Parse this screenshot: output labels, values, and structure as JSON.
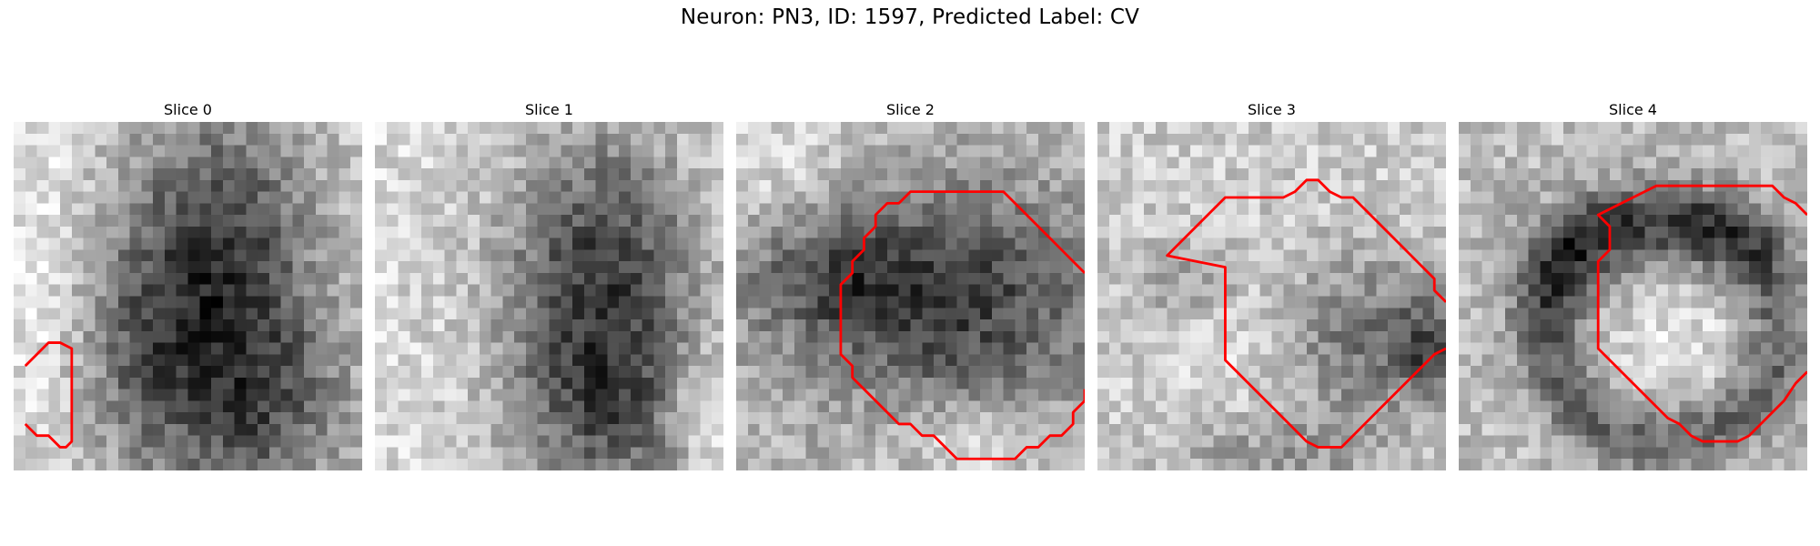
{
  "figure": {
    "title": "Neuron: PN3, ID: 1597, Predicted Label: CV",
    "colors": {
      "contour": "#ff0000",
      "background": "#ffffff",
      "colormap": "gray"
    }
  },
  "panels": [
    {
      "title": "Slice 0",
      "contour": [
        [
          0.5,
          20.5
        ],
        [
          1.5,
          19.5
        ],
        [
          2.5,
          18.5
        ],
        [
          3.5,
          18.5
        ],
        [
          4.5,
          19.0
        ],
        [
          4.5,
          21.0
        ],
        [
          4.5,
          23.0
        ],
        [
          4.5,
          25.0
        ],
        [
          4.5,
          27.0
        ],
        [
          4.0,
          27.5
        ],
        [
          3.5,
          27.5
        ],
        [
          2.5,
          26.5
        ],
        [
          1.5,
          26.5
        ],
        [
          0.5,
          25.5
        ]
      ]
    },
    {
      "title": "Slice 1",
      "contour": []
    },
    {
      "title": "Slice 2",
      "contour": [
        [
          29.5,
          12.5
        ],
        [
          28.5,
          11.5
        ],
        [
          27.5,
          10.5
        ],
        [
          26.5,
          9.5
        ],
        [
          25.5,
          8.5
        ],
        [
          24.5,
          7.5
        ],
        [
          23.5,
          6.5
        ],
        [
          22.5,
          5.5
        ],
        [
          20.5,
          5.5
        ],
        [
          18.5,
          5.5
        ],
        [
          16.5,
          5.5
        ],
        [
          14.5,
          5.5
        ],
        [
          13.5,
          6.5
        ],
        [
          12.5,
          6.5
        ],
        [
          11.5,
          7.5
        ],
        [
          11.5,
          8.5
        ],
        [
          10.5,
          9.5
        ],
        [
          10.5,
          10.5
        ],
        [
          9.5,
          11.5
        ],
        [
          9.5,
          12.5
        ],
        [
          8.5,
          13.5
        ],
        [
          8.5,
          15.5
        ],
        [
          8.5,
          17.5
        ],
        [
          8.5,
          19.5
        ],
        [
          9.5,
          20.5
        ],
        [
          9.5,
          21.5
        ],
        [
          10.5,
          22.5
        ],
        [
          11.5,
          23.5
        ],
        [
          12.5,
          24.5
        ],
        [
          13.5,
          25.5
        ],
        [
          14.5,
          25.5
        ],
        [
          15.5,
          26.5
        ],
        [
          16.5,
          26.5
        ],
        [
          17.5,
          27.5
        ],
        [
          18.5,
          28.5
        ],
        [
          20.5,
          28.5
        ],
        [
          22.5,
          28.5
        ],
        [
          23.5,
          28.5
        ],
        [
          24.5,
          27.5
        ],
        [
          25.5,
          27.5
        ],
        [
          26.5,
          26.5
        ],
        [
          27.5,
          26.5
        ],
        [
          28.5,
          25.5
        ],
        [
          28.5,
          24.5
        ],
        [
          29.5,
          23.5
        ],
        [
          29.5,
          22.5
        ]
      ]
    },
    {
      "title": "Slice 3",
      "contour": [
        [
          29.5,
          15.0
        ],
        [
          28.5,
          14.0
        ],
        [
          28.5,
          13.0
        ],
        [
          27.5,
          12.0
        ],
        [
          26.5,
          11.0
        ],
        [
          25.5,
          10.0
        ],
        [
          24.5,
          9.0
        ],
        [
          23.5,
          8.0
        ],
        [
          22.5,
          7.0
        ],
        [
          21.5,
          6.0
        ],
        [
          20.5,
          6.0
        ],
        [
          19.5,
          5.5
        ],
        [
          18.5,
          4.5
        ],
        [
          17.5,
          4.5
        ],
        [
          16.5,
          5.5
        ],
        [
          15.5,
          6.0
        ],
        [
          14.5,
          6.0
        ],
        [
          12.5,
          6.0
        ],
        [
          10.5,
          6.0
        ],
        [
          9.5,
          7.0
        ],
        [
          8.5,
          8.0
        ],
        [
          7.5,
          9.0
        ],
        [
          6.5,
          10.0
        ],
        [
          5.5,
          11.0
        ],
        [
          10.5,
          12.0
        ],
        [
          10.5,
          13.0
        ],
        [
          10.5,
          14.0
        ],
        [
          10.5,
          15.0
        ],
        [
          10.5,
          16.0
        ],
        [
          10.5,
          17.0
        ],
        [
          10.5,
          18.0
        ],
        [
          10.5,
          19.0
        ],
        [
          10.5,
          20.0
        ],
        [
          11.5,
          21.0
        ],
        [
          12.5,
          22.0
        ],
        [
          13.5,
          23.0
        ],
        [
          14.5,
          24.0
        ],
        [
          15.5,
          25.0
        ],
        [
          16.5,
          26.0
        ],
        [
          17.5,
          27.0
        ],
        [
          18.5,
          27.5
        ],
        [
          19.5,
          27.5
        ],
        [
          20.5,
          27.5
        ],
        [
          21.5,
          26.5
        ],
        [
          22.5,
          25.5
        ],
        [
          23.5,
          24.5
        ],
        [
          24.5,
          23.5
        ],
        [
          25.5,
          22.5
        ],
        [
          26.5,
          21.5
        ],
        [
          27.5,
          20.5
        ],
        [
          28.5,
          19.5
        ],
        [
          29.5,
          19.0
        ]
      ]
    },
    {
      "title": "Slice 4",
      "contour": [
        [
          29.5,
          7.5
        ],
        [
          28.5,
          6.5
        ],
        [
          27.5,
          6.0
        ],
        [
          26.5,
          5.0
        ],
        [
          25.5,
          5.0
        ],
        [
          24.5,
          5.0
        ],
        [
          22.5,
          5.0
        ],
        [
          20.5,
          5.0
        ],
        [
          18.5,
          5.0
        ],
        [
          16.5,
          5.0
        ],
        [
          14.5,
          6.0
        ],
        [
          13.5,
          6.5
        ],
        [
          12.5,
          7.0
        ],
        [
          11.5,
          7.5
        ],
        [
          12.5,
          8.5
        ],
        [
          12.5,
          9.5
        ],
        [
          12.5,
          10.5
        ],
        [
          11.5,
          11.5
        ],
        [
          11.5,
          13.0
        ],
        [
          11.5,
          15.0
        ],
        [
          11.5,
          17.0
        ],
        [
          11.5,
          19.0
        ],
        [
          12.5,
          20.0
        ],
        [
          13.5,
          21.0
        ],
        [
          14.5,
          22.0
        ],
        [
          15.5,
          23.0
        ],
        [
          16.5,
          24.0
        ],
        [
          17.5,
          25.0
        ],
        [
          18.5,
          25.5
        ],
        [
          19.5,
          26.5
        ],
        [
          20.5,
          27.0
        ],
        [
          21.5,
          27.0
        ],
        [
          23.5,
          27.0
        ],
        [
          24.5,
          26.5
        ],
        [
          25.5,
          25.5
        ],
        [
          26.5,
          24.5
        ],
        [
          27.5,
          23.5
        ],
        [
          28.5,
          22.0
        ],
        [
          29.5,
          21.0
        ]
      ]
    }
  ]
}
